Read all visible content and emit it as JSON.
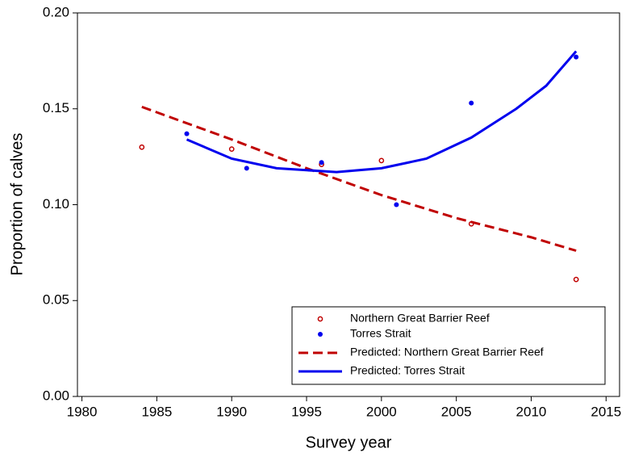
{
  "chart_data": {
    "type": "scatter",
    "x_label": "Survey year",
    "y_label": "Proportion of calves",
    "xlim": [
      1979.7,
      2015.9
    ],
    "ylim": [
      0,
      0.2
    ],
    "xticks": [
      1980,
      1985,
      1990,
      1995,
      2000,
      2005,
      2010,
      2015
    ],
    "yticks": [
      {
        "value": 0,
        "label": "0.00"
      },
      {
        "value": 0.05,
        "label": "0.05"
      },
      {
        "value": 0.1,
        "label": "0.10"
      },
      {
        "value": 0.15,
        "label": "0.15"
      },
      {
        "value": 0.2,
        "label": "0.20"
      }
    ],
    "legend": "lower right",
    "series": [
      {
        "name": "Northern Great Barrier Reef",
        "color": "#c00000",
        "mode": "open-marker",
        "x": [
          1984,
          1990,
          1996,
          2000,
          2006,
          2013
        ],
        "values": [
          0.13,
          0.129,
          0.121,
          0.123,
          0.09,
          0.061
        ]
      },
      {
        "name": "Torres Strait",
        "color": "#0000ee",
        "mode": "filled-marker",
        "x": [
          1987,
          1991,
          1996,
          2001,
          2006,
          2013
        ],
        "values": [
          0.137,
          0.119,
          0.122,
          0.1,
          0.153,
          0.177
        ]
      },
      {
        "name": "Predicted: Northern Great Barrier Reef",
        "color": "#c00000",
        "mode": "dashed-line",
        "x": [
          1984,
          1990,
          1995,
          2000,
          2005,
          2010,
          2013
        ],
        "values": [
          0.151,
          0.134,
          0.119,
          0.105,
          0.093,
          0.083,
          0.076
        ]
      },
      {
        "name": "Predicted: Torres Strait",
        "color": "#0000ee",
        "mode": "solid-line",
        "x": [
          1987,
          1990,
          1993,
          1997,
          2000,
          2003,
          2006,
          2009,
          2011,
          2013
        ],
        "values": [
          0.134,
          0.124,
          0.119,
          0.117,
          0.119,
          0.124,
          0.135,
          0.15,
          0.162,
          0.18
        ]
      }
    ]
  }
}
